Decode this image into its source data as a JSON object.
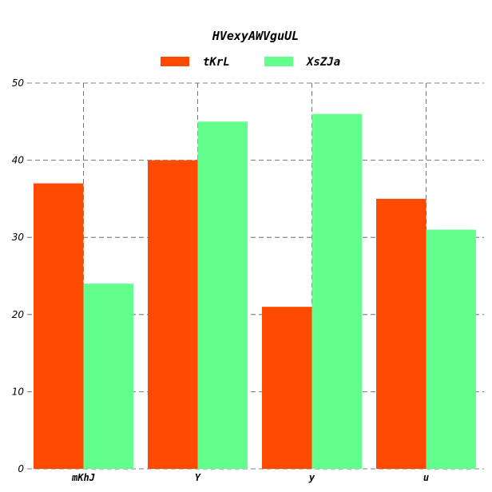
{
  "chart_data": {
    "type": "bar",
    "title": "HVexyAWVguUL",
    "xlabel": "",
    "ylabel": "",
    "categories": [
      "mKhJ",
      "Y",
      "y",
      "u"
    ],
    "series": [
      {
        "name": "tKrL",
        "values": [
          37,
          40,
          21,
          35
        ],
        "color": "#ff4a00"
      },
      {
        "name": "XsZJa",
        "values": [
          24,
          45,
          46,
          31
        ],
        "color": "#63ff8c"
      }
    ],
    "ylim": [
      0,
      50
    ],
    "yticks": [
      0,
      10,
      20,
      30,
      40,
      50
    ],
    "grid": true,
    "legend_position": "top-center"
  }
}
